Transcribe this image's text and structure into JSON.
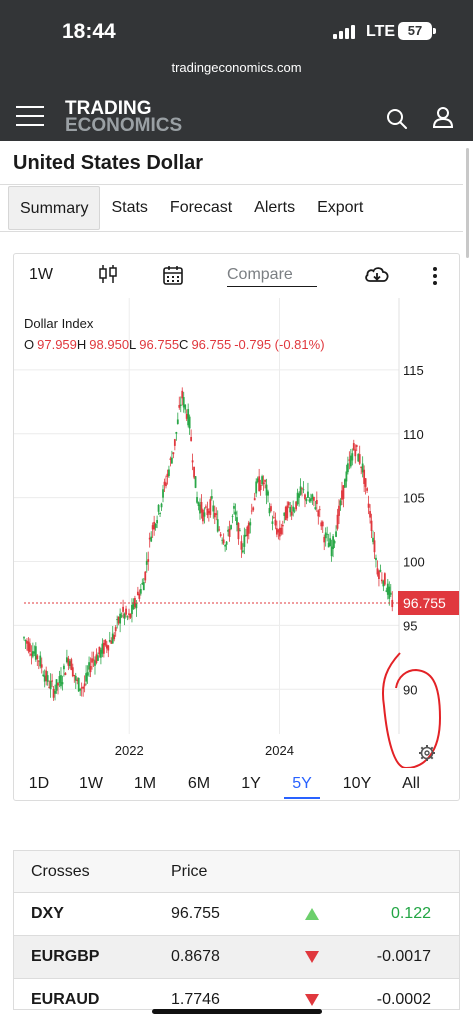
{
  "status": {
    "time": "18:44",
    "network": "LTE",
    "battery": "57"
  },
  "browser": {
    "url": "tradingeconomics.com"
  },
  "header": {
    "logo_line1": "TRADING",
    "logo_line2": "ECONOMICS"
  },
  "page": {
    "title": "United States Dollar"
  },
  "tabs": [
    {
      "label": "Summary",
      "active": true
    },
    {
      "label": "Stats"
    },
    {
      "label": "Forecast"
    },
    {
      "label": "Alerts"
    },
    {
      "label": "Export"
    }
  ],
  "chart_toolbar": {
    "interval": "1W",
    "compare_placeholder": "Compare"
  },
  "chart_data": {
    "type": "candlestick",
    "title": "Dollar Index",
    "ohlc": {
      "o_label": "O",
      "o": "97.959",
      "h_label": "H",
      "h": "98.950",
      "l_label": "L",
      "l": "96.755",
      "c_label": "C",
      "c": "96.755",
      "change": "-0.795 (-0.81%)"
    },
    "last_price": 96.755,
    "last_price_label": "96.755",
    "y_ticks": [
      115,
      110,
      105,
      100,
      95,
      90
    ],
    "y_tick_labels": [
      "115",
      "110",
      "105",
      "100",
      "95",
      "90"
    ],
    "x_tick_labels": [
      "2022",
      "2024"
    ],
    "x_ticks": [
      2022,
      2024
    ],
    "x_range": [
      2020.6,
      2025.55
    ],
    "y_range": [
      86.5,
      117.5
    ],
    "grid": true,
    "series": [
      {
        "x": 2020.6,
        "y": 94.0
      },
      {
        "x": 2020.7,
        "y": 93.2
      },
      {
        "x": 2020.8,
        "y": 92.4
      },
      {
        "x": 2020.9,
        "y": 90.8
      },
      {
        "x": 2021.0,
        "y": 89.9
      },
      {
        "x": 2021.1,
        "y": 90.8
      },
      {
        "x": 2021.2,
        "y": 92.6
      },
      {
        "x": 2021.3,
        "y": 90.5
      },
      {
        "x": 2021.4,
        "y": 90.1
      },
      {
        "x": 2021.5,
        "y": 92.2
      },
      {
        "x": 2021.6,
        "y": 92.7
      },
      {
        "x": 2021.7,
        "y": 93.5
      },
      {
        "x": 2021.8,
        "y": 94.2
      },
      {
        "x": 2021.9,
        "y": 96.0
      },
      {
        "x": 2022.0,
        "y": 95.5
      },
      {
        "x": 2022.1,
        "y": 97.0
      },
      {
        "x": 2022.2,
        "y": 98.5
      },
      {
        "x": 2022.3,
        "y": 102.5
      },
      {
        "x": 2022.4,
        "y": 104.0
      },
      {
        "x": 2022.5,
        "y": 106.5
      },
      {
        "x": 2022.6,
        "y": 109.0
      },
      {
        "x": 2022.7,
        "y": 113.0
      },
      {
        "x": 2022.75,
        "y": 112.0
      },
      {
        "x": 2022.8,
        "y": 111.0
      },
      {
        "x": 2022.9,
        "y": 105.0
      },
      {
        "x": 2023.0,
        "y": 103.5
      },
      {
        "x": 2023.1,
        "y": 104.5
      },
      {
        "x": 2023.2,
        "y": 102.5
      },
      {
        "x": 2023.3,
        "y": 101.5
      },
      {
        "x": 2023.4,
        "y": 104.0
      },
      {
        "x": 2023.5,
        "y": 101.0
      },
      {
        "x": 2023.6,
        "y": 103.0
      },
      {
        "x": 2023.7,
        "y": 106.0
      },
      {
        "x": 2023.8,
        "y": 106.2
      },
      {
        "x": 2023.9,
        "y": 103.5
      },
      {
        "x": 2024.0,
        "y": 102.0
      },
      {
        "x": 2024.1,
        "y": 104.0
      },
      {
        "x": 2024.2,
        "y": 104.3
      },
      {
        "x": 2024.3,
        "y": 105.5
      },
      {
        "x": 2024.4,
        "y": 104.8
      },
      {
        "x": 2024.5,
        "y": 104.5
      },
      {
        "x": 2024.6,
        "y": 102.0
      },
      {
        "x": 2024.7,
        "y": 101.0
      },
      {
        "x": 2024.8,
        "y": 104.0
      },
      {
        "x": 2024.9,
        "y": 107.0
      },
      {
        "x": 2025.0,
        "y": 109.0
      },
      {
        "x": 2025.1,
        "y": 107.5
      },
      {
        "x": 2025.2,
        "y": 104.0
      },
      {
        "x": 2025.3,
        "y": 99.5
      },
      {
        "x": 2025.4,
        "y": 98.5
      },
      {
        "x": 2025.5,
        "y": 96.8
      }
    ]
  },
  "range_buttons": [
    {
      "label": "1D"
    },
    {
      "label": "1W"
    },
    {
      "label": "1M"
    },
    {
      "label": "6M"
    },
    {
      "label": "1Y"
    },
    {
      "label": "5Y",
      "active": true
    },
    {
      "label": "10Y"
    },
    {
      "label": "All"
    }
  ],
  "crosses": {
    "header": {
      "name": "Crosses",
      "price": "Price"
    },
    "rows": [
      {
        "name": "DXY",
        "price": "96.755",
        "direction": "up",
        "change": "0.122"
      },
      {
        "name": "EURGBP",
        "price": "0.8678",
        "direction": "down",
        "change": "-0.0017"
      },
      {
        "name": "EURAUD",
        "price": "1.7746",
        "direction": "down",
        "change": "-0.0002"
      }
    ]
  },
  "colors": {
    "down": "#e0383e",
    "up": "#2aa748",
    "green_arrow": "#6ccf6c",
    "accent": "#2962ff",
    "annotation": "#e32226"
  },
  "icons": [
    "hamburger-icon",
    "search-icon",
    "user-icon",
    "candlestick-icon",
    "calendar-icon",
    "cloud-download-icon",
    "more-vertical-icon",
    "gear-icon"
  ]
}
